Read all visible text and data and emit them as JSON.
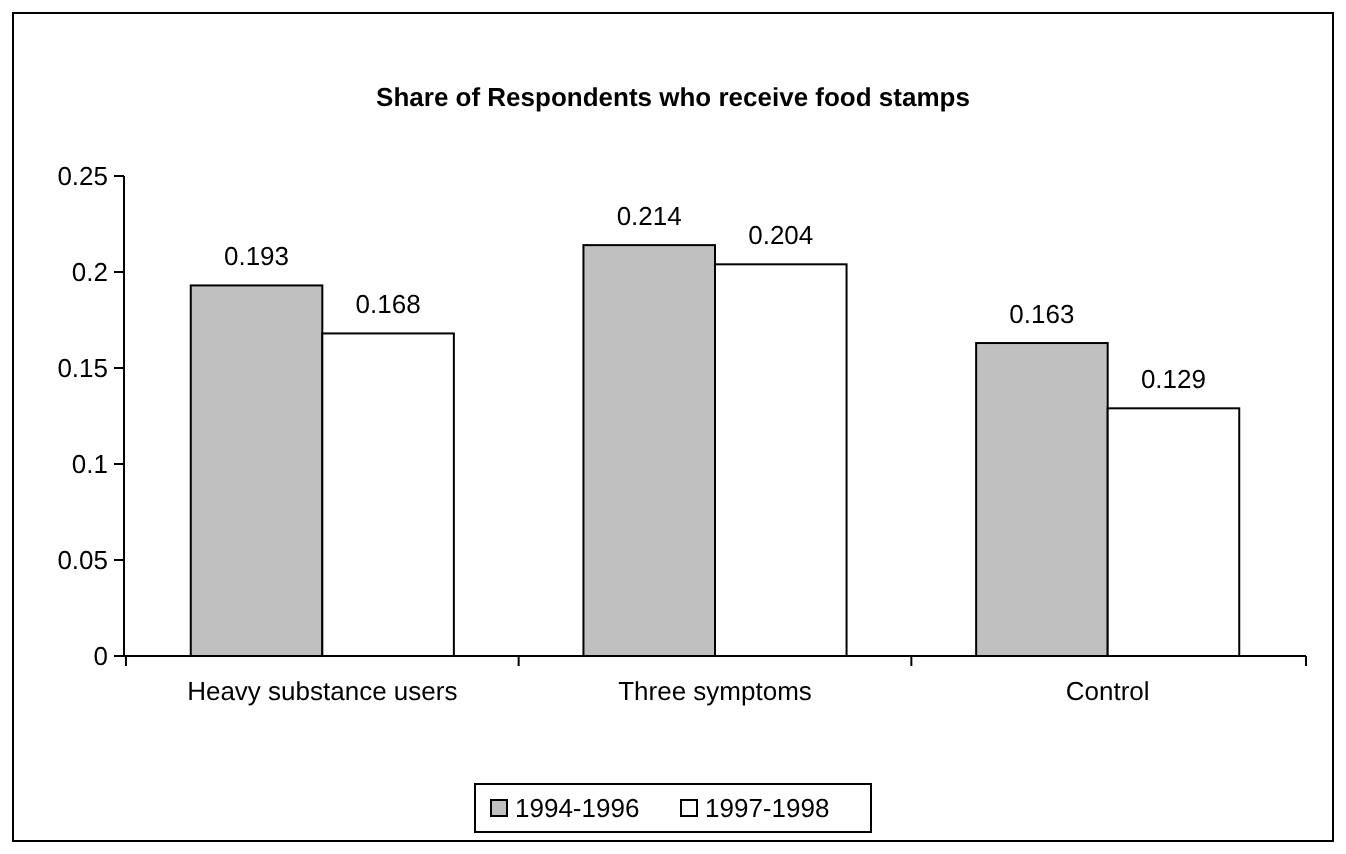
{
  "chart_data": {
    "type": "bar",
    "title": "Share of Respondents who receive food stamps",
    "categories": [
      "Heavy substance users",
      "Three symptoms",
      "Control"
    ],
    "series": [
      {
        "name": "1994-1996",
        "color": "#c0c0c0",
        "values": [
          0.193,
          0.214,
          0.163
        ]
      },
      {
        "name": "1997-1998",
        "color": "#ffffff",
        "values": [
          0.168,
          0.204,
          0.129
        ]
      }
    ],
    "ylim": [
      0,
      0.25
    ],
    "yticks": [
      0,
      0.05,
      0.1,
      0.15,
      0.2,
      0.25
    ],
    "grid": false,
    "legend": "bottom",
    "data_labels": true
  }
}
